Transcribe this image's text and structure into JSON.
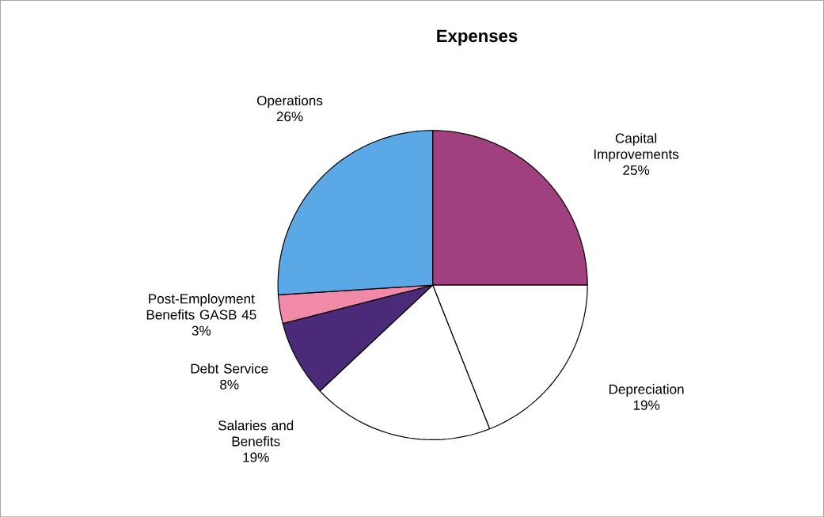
{
  "chart_data": {
    "type": "pie",
    "title": "Expenses",
    "categories": [
      "Capital Improvements",
      "Depreciation",
      "Salaries and Benefits",
      "Debt Service",
      "Post-Employment Benefits GASB 45",
      "Operations"
    ],
    "values": [
      25,
      19,
      19,
      8,
      3,
      26
    ],
    "value_labels": [
      "25%",
      "19%",
      "19%",
      "8%",
      "3%",
      "26%"
    ],
    "colors": [
      "#a0407f",
      "#ffffff",
      "#ffffff",
      "#4b2a7a",
      "#f08aa8",
      "#5aa8e6"
    ]
  }
}
